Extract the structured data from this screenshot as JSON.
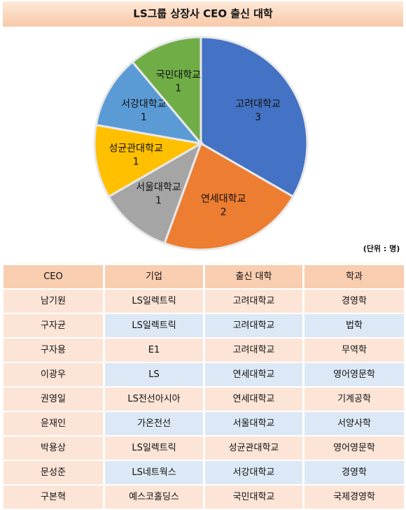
{
  "chart_data": {
    "type": "pie",
    "title": "LS그룹 상장사 CEO 출신 대학",
    "unit_note": "(단위 : 명)",
    "categories": [
      "고려대학교",
      "연세대학교",
      "서울대학교",
      "성균관대학교",
      "서강대학교",
      "국민대학교"
    ],
    "values": [
      3,
      2,
      1,
      1,
      1,
      1
    ],
    "colors": [
      "#4472c4",
      "#ed7d31",
      "#a5a5a5",
      "#ffc000",
      "#5b9bd5",
      "#70ad47"
    ]
  },
  "table": {
    "header": [
      "CEO",
      "기업",
      "출신 대학",
      "학과"
    ],
    "rows": [
      [
        "남기원",
        "LS일렉트릭",
        "고려대학교",
        "경영학"
      ],
      [
        "구자균",
        "LS일렉트릭",
        "고려대학교",
        "법학"
      ],
      [
        "구자용",
        "E1",
        "고려대학교",
        "무역학"
      ],
      [
        "이광우",
        "LS",
        "연세대학교",
        "영어영문학"
      ],
      [
        "권영일",
        "LS전선아시아",
        "연세대학교",
        "기계공학"
      ],
      [
        "윤재인",
        "가온전선",
        "서울대학교",
        "서양사학"
      ],
      [
        "박용상",
        "LS일렉트릭",
        "성균관대학교",
        "영어영문학"
      ],
      [
        "문성준",
        "LS네트웍스",
        "서강대학교",
        "경영학"
      ],
      [
        "구본혁",
        "예스코홀딩스",
        "국민대학교",
        "국제경영학"
      ]
    ]
  }
}
